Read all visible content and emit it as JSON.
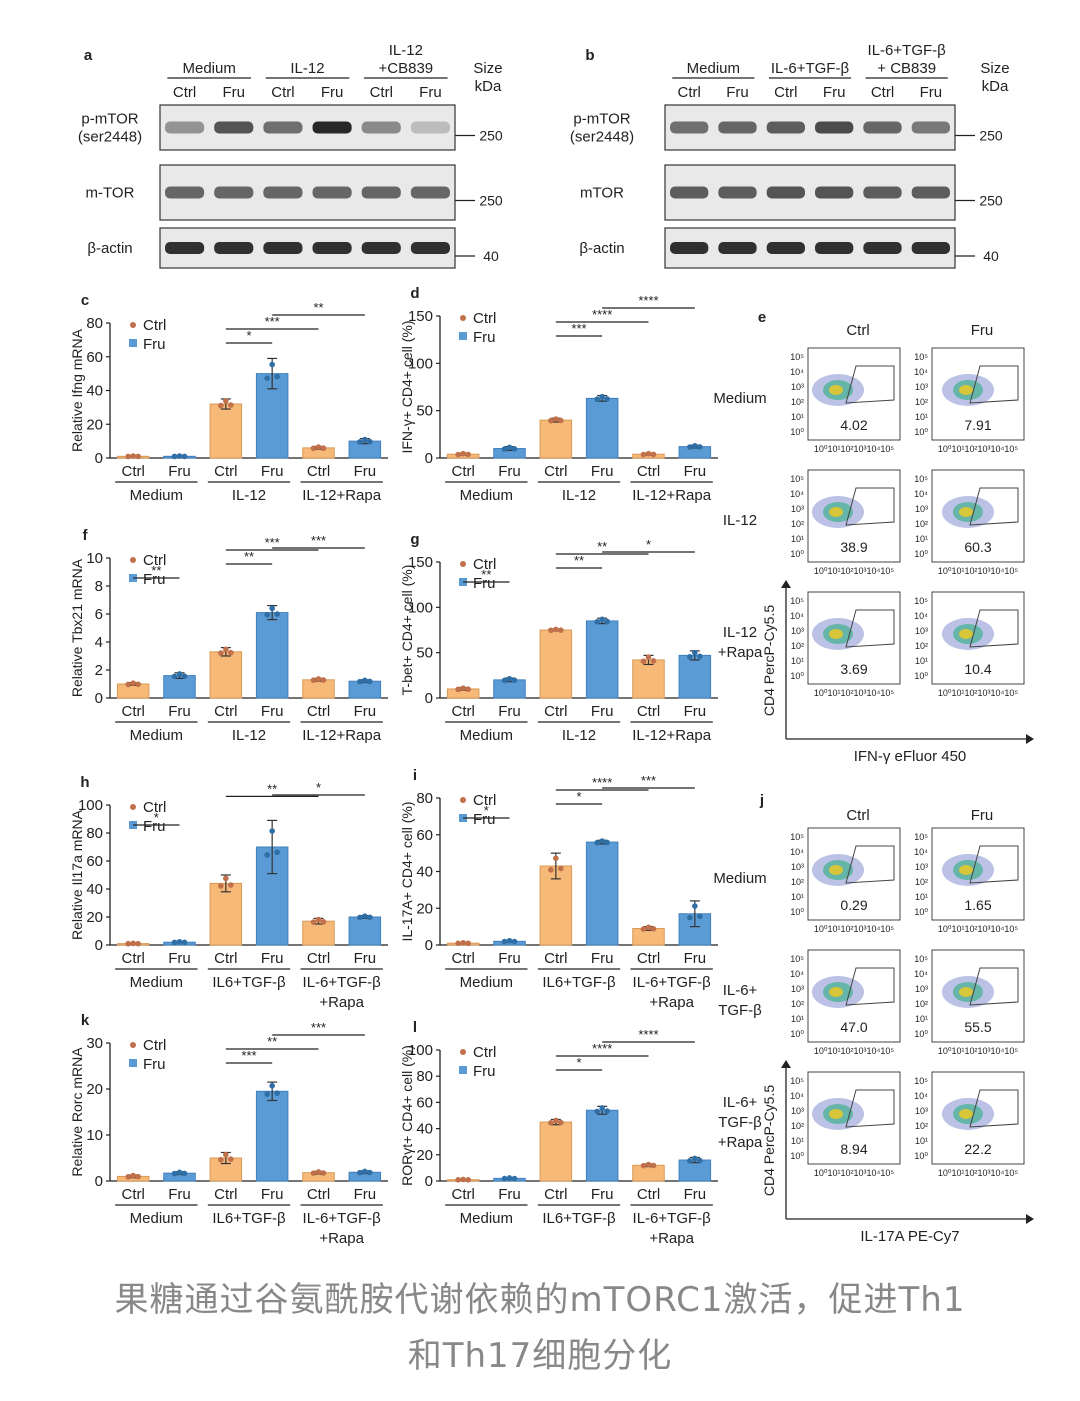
{
  "caption": {
    "line1": "果糖通过谷氨酰胺代谢依赖的mTORC1激活，促进Th1",
    "line2": "和Th17细胞分化"
  },
  "colors": {
    "ctrl": "#F6B978",
    "fru": "#5B9BD5",
    "ctrl_dot": "#C0704A",
    "fru_dot": "#2F6FA6"
  },
  "legend": {
    "ctrl": "Ctrl",
    "fru": "Fru"
  },
  "blots": [
    {
      "panel": "a",
      "groups": [
        "Medium",
        "IL-12",
        "IL-12\n+CB839"
      ],
      "lanes": [
        "Ctrl",
        "Fru",
        "Ctrl",
        "Fru",
        "Ctrl",
        "Fru"
      ],
      "size_header": "Size\nkDa",
      "rows": [
        {
          "label": "p-mTOR\n(ser2448)",
          "size": "250",
          "intensity": [
            0.35,
            0.7,
            0.55,
            0.95,
            0.4,
            0.12
          ]
        },
        {
          "label": "m-TOR",
          "size": "250",
          "intensity": [
            0.6,
            0.6,
            0.6,
            0.6,
            0.6,
            0.6
          ]
        },
        {
          "label": "β-actin",
          "size": "40",
          "intensity": [
            0.9,
            0.9,
            0.9,
            0.9,
            0.9,
            0.9
          ]
        }
      ]
    },
    {
      "panel": "b",
      "groups": [
        "Medium",
        "IL-6+TGF-β",
        "IL-6+TGF-β\n+ CB839"
      ],
      "lanes": [
        "Ctrl",
        "Fru",
        "Ctrl",
        "Fru",
        "Ctrl",
        "Fru"
      ],
      "size_header": "Size\nkDa",
      "rows": [
        {
          "label": "p-mTOR\n(ser2448)",
          "size": "250",
          "intensity": [
            0.55,
            0.6,
            0.65,
            0.75,
            0.6,
            0.5
          ]
        },
        {
          "label": "mTOR",
          "size": "250",
          "intensity": [
            0.65,
            0.65,
            0.7,
            0.7,
            0.65,
            0.65
          ]
        },
        {
          "label": "β-actin",
          "size": "40",
          "intensity": [
            0.9,
            0.9,
            0.9,
            0.9,
            0.9,
            0.9
          ]
        }
      ]
    }
  ],
  "chart_data": [
    {
      "panel": "c",
      "type": "bar",
      "ylabel": "Relative Ifng mRNA",
      "ylim": [
        0,
        80
      ],
      "yticks": [
        0,
        20,
        40,
        60,
        80
      ],
      "categories": [
        "Ctrl",
        "Fru",
        "Ctrl",
        "Fru",
        "Ctrl",
        "Fru"
      ],
      "groups": [
        "Medium",
        "IL-12",
        "IL-12+Rapa"
      ],
      "values": [
        1,
        1,
        32,
        50,
        6,
        10
      ],
      "errors": [
        0.3,
        0.3,
        3,
        9,
        0.8,
        1.5
      ],
      "sig": [
        {
          "a": 2,
          "b": 3,
          "label": "*"
        },
        {
          "a": 2,
          "b": 4,
          "label": "***"
        },
        {
          "a": 3,
          "b": 5,
          "label": "**"
        }
      ]
    },
    {
      "panel": "d",
      "type": "bar",
      "ylabel": "IFN-γ+ CD4+ cell (%)",
      "ylim": [
        0,
        150
      ],
      "yticks": [
        0,
        50,
        100,
        150
      ],
      "categories": [
        "Ctrl",
        "Fru",
        "Ctrl",
        "Fru",
        "Ctrl",
        "Fru"
      ],
      "groups": [
        "Medium",
        "IL-12",
        "IL-12+Rapa"
      ],
      "values": [
        4,
        10,
        40,
        63,
        4,
        12
      ],
      "errors": [
        1,
        2,
        2,
        3,
        1,
        1.5
      ],
      "sig": [
        {
          "a": 2,
          "b": 3,
          "label": "***"
        },
        {
          "a": 2,
          "b": 4,
          "label": "****"
        },
        {
          "a": 3,
          "b": 5,
          "label": "****"
        }
      ]
    },
    {
      "panel": "f",
      "type": "bar",
      "ylabel": "Relative Tbx21 mRNA",
      "ylim": [
        0,
        10
      ],
      "yticks": [
        0,
        2,
        4,
        6,
        8,
        10
      ],
      "categories": [
        "Ctrl",
        "Fru",
        "Ctrl",
        "Fru",
        "Ctrl",
        "Fru"
      ],
      "groups": [
        "Medium",
        "IL-12",
        "IL-12+Rapa"
      ],
      "values": [
        1,
        1.6,
        3.3,
        6.1,
        1.3,
        1.2
      ],
      "errors": [
        0.1,
        0.2,
        0.3,
        0.5,
        0.1,
        0.1
      ],
      "sig": [
        {
          "a": 0,
          "b": 1,
          "label": "**"
        },
        {
          "a": 2,
          "b": 3,
          "label": "**"
        },
        {
          "a": 2,
          "b": 4,
          "label": "***"
        },
        {
          "a": 3,
          "b": 5,
          "label": "***"
        }
      ]
    },
    {
      "panel": "g",
      "type": "bar",
      "ylabel": "T-bet+ CD4+ cell (%)",
      "ylim": [
        0,
        150
      ],
      "yticks": [
        0,
        50,
        100,
        150
      ],
      "categories": [
        "Ctrl",
        "Fru",
        "Ctrl",
        "Fru",
        "Ctrl",
        "Fru"
      ],
      "groups": [
        "Medium",
        "IL-12",
        "IL-12+Rapa"
      ],
      "values": [
        10,
        20,
        75,
        85,
        42,
        47
      ],
      "errors": [
        1.5,
        2,
        1,
        3,
        5,
        5
      ],
      "sig": [
        {
          "a": 0,
          "b": 1,
          "label": "**"
        },
        {
          "a": 2,
          "b": 3,
          "label": "**"
        },
        {
          "a": 2,
          "b": 4,
          "label": "**"
        },
        {
          "a": 3,
          "b": 5,
          "label": "*"
        }
      ]
    },
    {
      "panel": "h",
      "type": "bar",
      "ylabel": "Relative Il17a mRNA",
      "ylim": [
        0,
        100
      ],
      "yticks": [
        0,
        20,
        40,
        60,
        80,
        100
      ],
      "categories": [
        "Ctrl",
        "Fru",
        "Ctrl",
        "Fru",
        "Ctrl",
        "Fru"
      ],
      "groups": [
        "Medium",
        "IL6+TGF-β",
        "IL-6+TGF-β\n+Rapa"
      ],
      "values": [
        1,
        2,
        44,
        70,
        17,
        20
      ],
      "errors": [
        0.3,
        0.5,
        6,
        19,
        2,
        1
      ],
      "sig": [
        {
          "a": 0,
          "b": 1,
          "label": "*"
        },
        {
          "a": 2,
          "b": 4,
          "label": "**"
        },
        {
          "a": 3,
          "b": 5,
          "label": "*"
        }
      ]
    },
    {
      "panel": "i",
      "type": "bar",
      "ylabel": "IL-17A+ CD4+ cell (%)",
      "ylim": [
        0,
        80
      ],
      "yticks": [
        0,
        20,
        40,
        60,
        80
      ],
      "categories": [
        "Ctrl",
        "Fru",
        "Ctrl",
        "Fru",
        "Ctrl",
        "Fru"
      ],
      "groups": [
        "Medium",
        "IL6+TGF-β",
        "IL-6+TGF-β\n+Rapa"
      ],
      "values": [
        1,
        2,
        43,
        56,
        9,
        17
      ],
      "errors": [
        0.3,
        0.5,
        7,
        1,
        1,
        7
      ],
      "sig": [
        {
          "a": 0,
          "b": 1,
          "label": "*"
        },
        {
          "a": 2,
          "b": 3,
          "label": "*"
        },
        {
          "a": 2,
          "b": 4,
          "label": "****"
        },
        {
          "a": 3,
          "b": 5,
          "label": "***"
        }
      ]
    },
    {
      "panel": "k",
      "type": "bar",
      "ylabel": "Relative Rorc mRNA",
      "ylim": [
        0,
        30
      ],
      "yticks": [
        0,
        10,
        20,
        30
      ],
      "categories": [
        "Ctrl",
        "Fru",
        "Ctrl",
        "Fru",
        "Ctrl",
        "Fru"
      ],
      "groups": [
        "Medium",
        "IL6+TGF-β",
        "IL-6+TGF-β\n+Rapa"
      ],
      "values": [
        1,
        1.7,
        5,
        19.5,
        1.8,
        1.9
      ],
      "errors": [
        0.3,
        0.3,
        1.2,
        2,
        0.3,
        0.3
      ],
      "sig": [
        {
          "a": 2,
          "b": 3,
          "label": "***"
        },
        {
          "a": 2,
          "b": 4,
          "label": "**"
        },
        {
          "a": 3,
          "b": 5,
          "label": "***"
        }
      ]
    },
    {
      "panel": "l",
      "type": "bar",
      "ylabel": "RORγt+ CD4+ cell (%)",
      "ylim": [
        0,
        100
      ],
      "yticks": [
        0,
        20,
        40,
        60,
        80,
        100
      ],
      "categories": [
        "Ctrl",
        "Fru",
        "Ctrl",
        "Fru",
        "Ctrl",
        "Fru"
      ],
      "groups": [
        "Medium",
        "IL6+TGF-β",
        "IL-6+TGF-β\n+Rapa"
      ],
      "values": [
        1,
        2,
        45,
        54,
        12,
        16
      ],
      "errors": [
        0.3,
        0.5,
        2,
        3,
        1,
        2
      ],
      "sig": [
        {
          "a": 2,
          "b": 3,
          "label": "*"
        },
        {
          "a": 2,
          "b": 4,
          "label": "****"
        },
        {
          "a": 3,
          "b": 5,
          "label": "****"
        }
      ]
    }
  ],
  "flow": [
    {
      "panel": "e",
      "columns": [
        "Ctrl",
        "Fru"
      ],
      "rows": [
        {
          "label": "Medium",
          "values": [
            "4.02",
            "7.91"
          ]
        },
        {
          "label": "IL-12",
          "values": [
            "38.9",
            "60.3"
          ]
        },
        {
          "label": "IL-12\n+Rapa",
          "values": [
            "3.69",
            "10.4"
          ]
        }
      ],
      "ylabel": "CD4 PercP-Cy5.5",
      "xlabel": "IFN-γ eFluor 450"
    },
    {
      "panel": "j",
      "columns": [
        "Ctrl",
        "Fru"
      ],
      "rows": [
        {
          "label": "Medium",
          "values": [
            "0.29",
            "1.65"
          ]
        },
        {
          "label": "IL-6+\nTGF-β",
          "values": [
            "47.0",
            "55.5"
          ]
        },
        {
          "label": "IL-6+\nTGF-β\n+Rapa",
          "values": [
            "8.94",
            "22.2"
          ]
        }
      ],
      "ylabel": "CD4 PercP-Cy5.5",
      "xlabel": "IL-17A PE-Cy7"
    }
  ],
  "flow_axis": {
    "y": [
      "10⁵",
      "10⁴",
      "10³",
      "10²",
      "10¹",
      "10⁰"
    ],
    "x": "10⁰10¹10²10³10⁴10⁵"
  }
}
